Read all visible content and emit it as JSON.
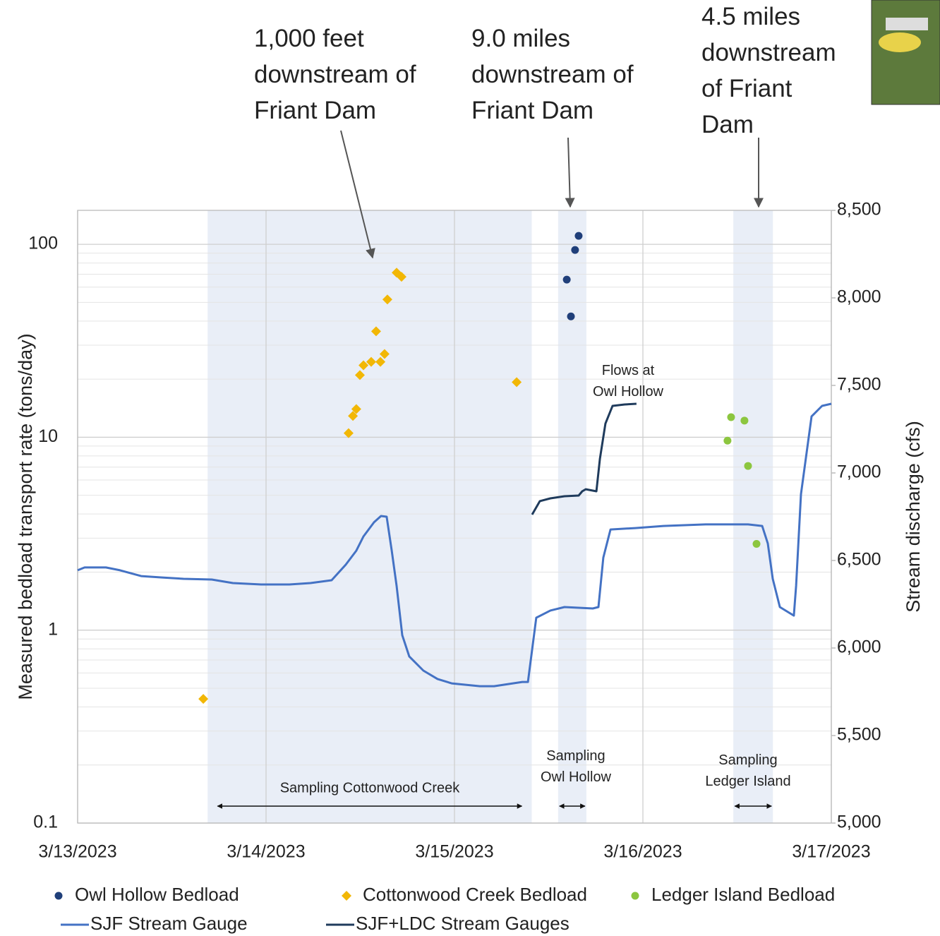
{
  "chart_data": {
    "type": "scatter-line",
    "xlim": [
      0,
      4
    ],
    "xticks": [
      {
        "value": 0,
        "label": "3/13/2023"
      },
      {
        "value": 1,
        "label": "3/14/2023"
      },
      {
        "value": 2,
        "label": "3/15/2023"
      },
      {
        "value": 3,
        "label": "3/16/2023"
      },
      {
        "value": 4,
        "label": "3/17/2023"
      }
    ],
    "ylim": [
      0.1,
      150
    ],
    "yticks": [
      0.1,
      1,
      10,
      100
    ],
    "y_log": true,
    "minor_grid": true,
    "y2lim": [
      5000,
      8500
    ],
    "y2ticks": [
      {
        "value": 5000,
        "label": "5,000"
      },
      {
        "value": 5500,
        "label": "5,500"
      },
      {
        "value": 6000,
        "label": "6,000"
      },
      {
        "value": 6500,
        "label": "6,500"
      },
      {
        "value": 7000,
        "label": "7,000"
      },
      {
        "value": 7500,
        "label": "7,500"
      },
      {
        "value": 8000,
        "label": "8,000"
      },
      {
        "value": 8500,
        "label": "8,500"
      }
    ],
    "y_label": "Measured bedload transport rate (tons/day)",
    "y2_label": "Stream discharge (cfs)",
    "grid": true,
    "shaded_periods": [
      {
        "start": 0.69,
        "end": 2.41,
        "label": "Sampling Cottonwood Creek"
      },
      {
        "start": 2.55,
        "end": 2.7,
        "label": [
          "Sampling",
          "Owl Hollow"
        ]
      },
      {
        "start": 3.48,
        "end": 3.69,
        "label": [
          "Sampling",
          "Ledger Island"
        ]
      }
    ],
    "shade_color": "#e9eef7",
    "callouts": [
      [
        "1,000 feet",
        "downstream of",
        "Friant Dam"
      ],
      [
        "9.0 miles",
        "downstream of",
        "Friant Dam"
      ],
      [
        "4.5 miles",
        "downstream",
        "of Friant",
        "Dam"
      ]
    ],
    "line_note": [
      "Flows at",
      "Owl Hollow"
    ],
    "series": [
      {
        "name": "Owl Hollow Bedload",
        "kind": "scatter",
        "marker": "circle",
        "color": "#203f7a",
        "x": [
          2.596,
          2.618,
          2.64,
          2.659
        ],
        "values": [
          65.6,
          42.3,
          93.5,
          110.6
        ]
      },
      {
        "name": "Cottonwood Creek Bedload",
        "kind": "scatter",
        "marker": "diamond",
        "color": "#f2b705",
        "x": [
          0.667,
          1.461,
          1.479,
          1.438,
          1.498,
          1.517,
          1.558,
          1.607,
          1.629,
          1.584,
          1.644,
          1.693,
          1.719,
          2.33
        ],
        "values": [
          0.44,
          12.9,
          14.0,
          10.5,
          21.0,
          23.6,
          24.6,
          24.6,
          27.0,
          35.4,
          51.8,
          71.3,
          67.9,
          19.3
        ]
      },
      {
        "name": "Ledger Island Bedload",
        "kind": "scatter",
        "marker": "circle",
        "color": "#8cc63f",
        "x": [
          3.449,
          3.468,
          3.539,
          3.558,
          3.603
        ],
        "values": [
          9.6,
          12.7,
          12.2,
          7.1,
          2.8
        ]
      },
      {
        "name": "SJF Stream Gauge",
        "kind": "line",
        "axis": "y2",
        "color": "#4472c4",
        "x": [
          0,
          0.037,
          0.15,
          0.225,
          0.337,
          0.449,
          0.562,
          0.712,
          0.824,
          0.974,
          1.124,
          1.236,
          1.348,
          1.423,
          1.479,
          1.517,
          1.573,
          1.61,
          1.64,
          1.667,
          1.693,
          1.723,
          1.76,
          1.835,
          1.91,
          1.985,
          2.135,
          2.21,
          2.36,
          2.39,
          2.434,
          2.509,
          2.584,
          2.734,
          2.764,
          2.79,
          2.828,
          2.959,
          3.109,
          3.333,
          3.558,
          3.633,
          3.663,
          3.689,
          3.727,
          3.801,
          3.813,
          3.839,
          3.895,
          3.951,
          4
        ],
        "values": [
          6444,
          6460,
          6460,
          6444,
          6411,
          6403,
          6395,
          6391,
          6371,
          6363,
          6363,
          6371,
          6387,
          6476,
          6556,
          6637,
          6718,
          6754,
          6750,
          6556,
          6355,
          6073,
          5952,
          5871,
          5823,
          5798,
          5782,
          5782,
          5806,
          5806,
          6173,
          6214,
          6234,
          6226,
          6234,
          6516,
          6677,
          6685,
          6697,
          6706,
          6706,
          6697,
          6597,
          6395,
          6234,
          6185,
          6355,
          6879,
          7323,
          7383,
          7395
        ]
      },
      {
        "name": "SJF+LDC Stream Gauges",
        "kind": "line",
        "axis": "y2",
        "color": "#1f3b5c",
        "x": [
          2.412,
          2.453,
          2.509,
          2.584,
          2.659,
          2.678,
          2.697,
          2.753,
          2.772,
          2.801,
          2.839,
          2.903,
          2.966
        ],
        "values": [
          6762,
          6839,
          6855,
          6867,
          6871,
          6895,
          6907,
          6895,
          7081,
          7282,
          7383,
          7391,
          7395
        ]
      }
    ]
  }
}
